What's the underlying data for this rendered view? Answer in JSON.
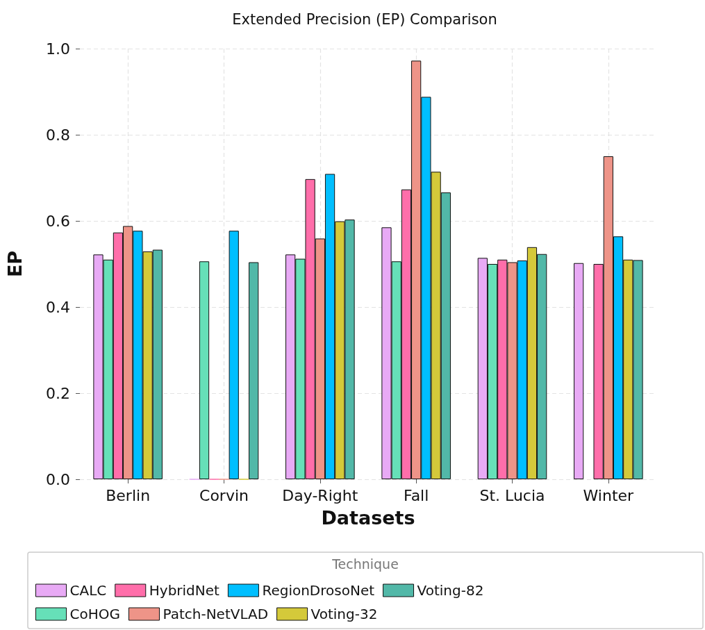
{
  "chart_data": {
    "type": "bar",
    "title": "Extended Precision (EP) Comparison",
    "xlabel": "Datasets",
    "ylabel": "EP",
    "legend_title": "Technique",
    "categories": [
      "Berlin",
      "Corvin",
      "Day-Right",
      "Fall",
      "St. Lucia",
      "Winter"
    ],
    "series": [
      {
        "name": "CALC",
        "color": "#e8aaf5",
        "values": [
          0.522,
          0,
          0.522,
          0.585,
          0.514,
          0.502
        ]
      },
      {
        "name": "CoHOG",
        "color": "#66e0b8",
        "values": [
          0.51,
          0.506,
          0.512,
          0.506,
          0.5,
          null
        ]
      },
      {
        "name": "HybridNet",
        "color": "#ff6eaa",
        "values": [
          0.573,
          0,
          0.697,
          0.673,
          0.51,
          0.5
        ]
      },
      {
        "name": "Patch-NetVLAD",
        "color": "#ee9488",
        "values": [
          0.588,
          0,
          0.559,
          0.972,
          0.504,
          0.75
        ]
      },
      {
        "name": "RegionDrosoNet",
        "color": "#00bfff",
        "values": [
          0.577,
          0.577,
          0.709,
          0.888,
          0.508,
          0.564
        ]
      },
      {
        "name": "Voting-32",
        "color": "#d4c93a",
        "values": [
          0.529,
          0,
          0.599,
          0.714,
          0.539,
          0.51
        ]
      },
      {
        "name": "Voting-82",
        "color": "#52b8a8",
        "values": [
          0.533,
          0.504,
          0.603,
          0.666,
          0.523,
          0.509
        ]
      }
    ],
    "ylim": [
      0,
      1
    ],
    "yticks": [
      {
        "value": 0,
        "label": "0.0"
      },
      0.2,
      0.4,
      0.6,
      0.8,
      {
        "value": 1,
        "label": "1.0"
      }
    ],
    "grid": true,
    "legend": "bottom"
  }
}
